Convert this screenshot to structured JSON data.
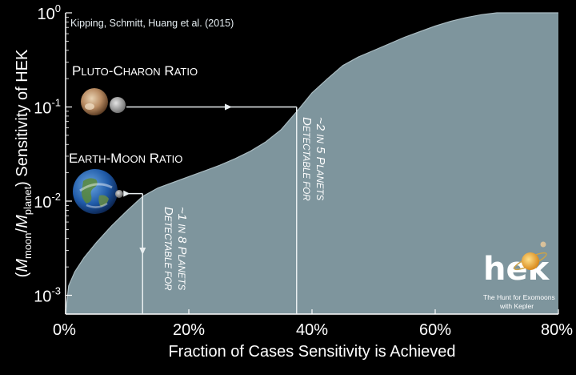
{
  "chart_data": {
    "type": "area",
    "xlabel": "Fraction of Cases Sensitivity is Achieved",
    "ylabel": "(Mmoon/Mplanet) Sensitivity of HEK",
    "xlim": [
      0,
      80
    ],
    "ylim_log10": [
      -3.2,
      0
    ],
    "scale": {
      "x": "linear",
      "y": "log"
    },
    "x_ticks": [
      "0%",
      "20%",
      "40%",
      "60%",
      "80%"
    ],
    "y_ticks": [
      {
        "base": "10",
        "exp": "-3",
        "value": -3
      },
      {
        "base": "10",
        "exp": "-2",
        "value": -2
      },
      {
        "base": "10",
        "exp": "-1",
        "value": -1
      },
      {
        "base": "10",
        "exp": "0",
        "value": 0
      }
    ],
    "series": [
      {
        "x": [
          0,
          0.5,
          1.5,
          3,
          5,
          7.5,
          10,
          12.5,
          15,
          17.5,
          20,
          22.5,
          25,
          27.5,
          30,
          32.5,
          35,
          37.5,
          40,
          42.5,
          45,
          47.5,
          50,
          52.5,
          55,
          57.5,
          60,
          62.5,
          65,
          67.5,
          70,
          75,
          80
        ],
        "y_log10": [
          -3.2,
          -2.9,
          -2.75,
          -2.6,
          -2.44,
          -2.26,
          -2.1,
          -1.95,
          -1.86,
          -1.8,
          -1.74,
          -1.68,
          -1.62,
          -1.55,
          -1.47,
          -1.37,
          -1.24,
          -1.05,
          -0.85,
          -0.7,
          -0.56,
          -0.47,
          -0.4,
          -0.33,
          -0.26,
          -0.2,
          -0.14,
          -0.09,
          -0.05,
          -0.02,
          0,
          0,
          0
        ]
      }
    ],
    "colors": {
      "fill": "#7e959d",
      "curve": "#9db0b7",
      "background": "#000000",
      "text": "#ffffff"
    },
    "grid": false,
    "annotations": {
      "credit": "Kipping, Schmitt, Huang et al. (2015)",
      "pluto_charon": {
        "first": "P",
        "rest_a": "LUTO",
        "dash": "-",
        "first_b": "C",
        "rest_b": "HARON",
        "space": " ",
        "first_c": "R",
        "rest_c": "ATIO",
        "ratio_log10": -1.0,
        "detectable_x": 37.5
      },
      "earth_moon": {
        "first": "E",
        "rest_a": "ARTH",
        "dash": "-",
        "first_b": "M",
        "rest_b": "OON",
        "space": " ",
        "first_c": "R",
        "rest_c": "ATIO",
        "ratio_log10": -1.92,
        "detectable_x": 12.5
      },
      "detectable_2in5": {
        "line1": {
          "cap": "D",
          "sc": "ETECTABLE FOR"
        },
        "line2": {
          "pre": "~2 ",
          "sc1": "IN",
          "mid": " 5 ",
          "cap": "P",
          "sc2": "LANETS"
        }
      },
      "detectable_1in8": {
        "line1": {
          "cap": "D",
          "sc": "ETECTABLE FOR"
        },
        "line2": {
          "pre": "~1 ",
          "sc1": "IN",
          "mid": " 8 ",
          "cap": "P",
          "sc2": "LANETS"
        }
      }
    }
  },
  "logo": {
    "wordmark": "hek",
    "tagline_1": "The Hunt for Exomoons",
    "tagline_2": "with Kepler"
  },
  "icons": {
    "pluto": "pluto-planet-icon",
    "charon": "charon-moon-icon",
    "earth": "earth-planet-icon",
    "moon": "moon-icon"
  }
}
